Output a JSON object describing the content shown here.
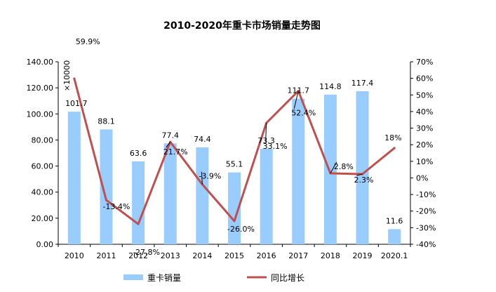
{
  "chart_data": {
    "type": "bar",
    "title": "2010-2020年重卡市场销量走势图",
    "unit_label": "×10000",
    "categories": [
      "2010",
      "2011",
      "2012",
      "2013",
      "2014",
      "2015",
      "2016",
      "2017",
      "2018",
      "2019",
      "2020.1"
    ],
    "series": [
      {
        "name": "重卡销量",
        "type": "bar",
        "axis": "left",
        "values": [
          101.7,
          88.1,
          63.6,
          77.4,
          74.4,
          55.1,
          73.3,
          111.7,
          114.8,
          117.4,
          11.6
        ],
        "labels": [
          "101.7",
          "88.1",
          "63.6",
          "77.4",
          "74.4",
          "55.1",
          "73.3",
          "111.7",
          "114.8",
          "117.4",
          "11.6"
        ],
        "color": "#99CCFF"
      },
      {
        "name": "同比增长",
        "type": "line",
        "axis": "right",
        "values": [
          59.9,
          -13.4,
          -27.8,
          21.7,
          -3.9,
          -26.0,
          33.1,
          52.4,
          2.8,
          2.3,
          18
        ],
        "labels": [
          "59.9%",
          "-13.4%",
          "-27.8%",
          "21.7%",
          "-3.9%",
          "-26.0%",
          "33.1%",
          "52.4%",
          "2.8%",
          "2.3%",
          "18%"
        ],
        "color": "#C0504D"
      }
    ],
    "left_axis": {
      "ylim": [
        0,
        140
      ],
      "ticks": [
        "0.00",
        "20.00",
        "40.00",
        "60.00",
        "80.00",
        "100.00",
        "120.00",
        "140.00"
      ]
    },
    "right_axis": {
      "ylim": [
        -40,
        70
      ],
      "ticks": [
        "-40%",
        "-30%",
        "-20%",
        "-10%",
        "0%",
        "10%",
        "20%",
        "30%",
        "40%",
        "50%",
        "60%",
        "70%"
      ]
    },
    "legend": [
      "重卡销量",
      "同比增长"
    ],
    "legend_position": "bottom",
    "grid": false
  }
}
